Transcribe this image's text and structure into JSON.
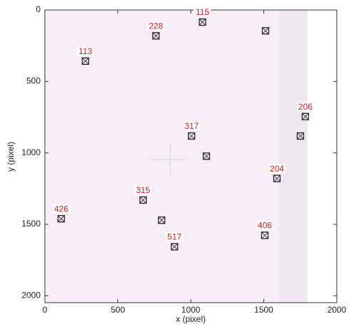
{
  "chart_data": {
    "type": "scatter",
    "x_label": "x (pixel)",
    "y_label": "y (pixel)",
    "xlim": [
      0,
      2000
    ],
    "ylim": [
      0,
      2048
    ],
    "xticks": [
      0,
      500,
      1000,
      1500,
      2000
    ],
    "yticks": [
      0,
      500,
      1000,
      1500,
      2000
    ],
    "y_inverted": true,
    "series": [
      {
        "color": "#222222",
        "label_color": "#d42020",
        "x": [
          1080,
          1512,
          761,
          278,
          1785,
          1751,
          1005,
          1107,
          1590,
          673,
          112,
          800,
          1507,
          888
        ],
        "y": [
          85,
          146,
          181,
          358,
          746,
          882,
          882,
          1023,
          1179,
          1330,
          1461,
          1471,
          1577,
          1657
        ],
        "point_labels": [
          "115",
          null,
          "228",
          "113",
          "206",
          null,
          "317",
          null,
          "204",
          "315",
          "426",
          null,
          "406",
          "517"
        ]
      }
    ]
  }
}
